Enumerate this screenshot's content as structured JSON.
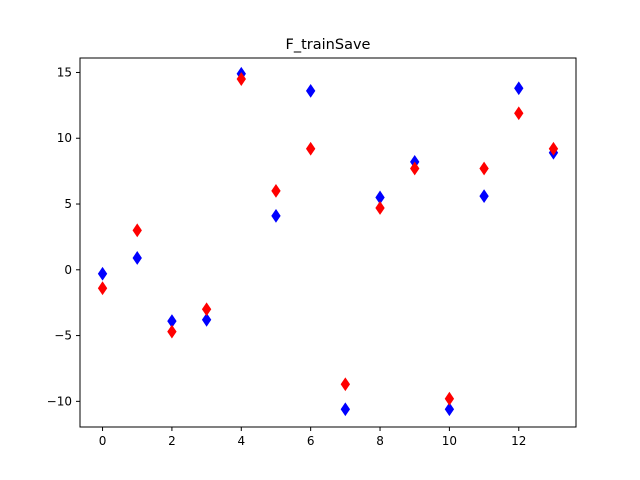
{
  "chart_data": {
    "type": "scatter",
    "title": "F_trainSave",
    "xlabel": "",
    "ylabel": "",
    "xlim": [
      -0.65,
      13.65
    ],
    "ylim": [
      -11.95,
      16.1
    ],
    "xticks": [
      0,
      2,
      4,
      6,
      8,
      10,
      12
    ],
    "yticks": [
      -10,
      -5,
      0,
      5,
      10,
      15
    ],
    "grid": false,
    "marker": "thin_diamond",
    "series": [
      {
        "color": "#0000ff",
        "x": [
          0,
          1,
          2,
          3,
          4,
          5,
          6,
          7,
          8,
          9,
          10,
          11,
          12,
          13
        ],
        "y": [
          -0.3,
          0.9,
          -3.9,
          -3.8,
          14.9,
          4.1,
          13.6,
          -10.6,
          5.5,
          8.2,
          -10.6,
          5.6,
          13.8,
          8.9
        ]
      },
      {
        "color": "#ff0000",
        "x": [
          0,
          1,
          2,
          3,
          4,
          5,
          6,
          7,
          8,
          9,
          10,
          11,
          12,
          13
        ],
        "y": [
          -1.4,
          3.0,
          -4.7,
          -3.0,
          14.5,
          6.0,
          9.2,
          -8.7,
          4.7,
          7.7,
          -9.8,
          7.7,
          11.9,
          9.2
        ]
      }
    ]
  }
}
